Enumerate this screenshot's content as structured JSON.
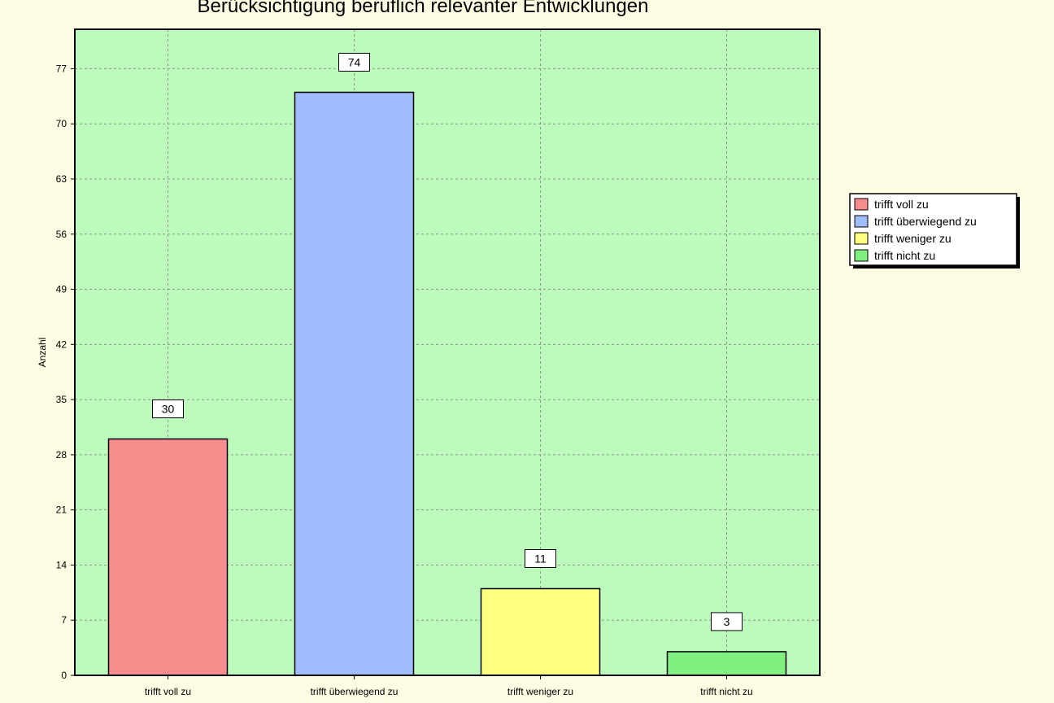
{
  "chart_data": {
    "type": "bar",
    "title": "Berücksichtigung beruflich relevanter Entwicklungen",
    "xlabel": "",
    "ylabel": "Anzahl",
    "categories": [
      "trifft voll zu",
      "trifft überwiegend zu",
      "trifft weniger zu",
      "trifft nicht zu"
    ],
    "values": [
      30,
      74,
      11,
      3
    ],
    "colors": [
      "#f78c8c",
      "#a0bcff",
      "#ffff80",
      "#80f080"
    ],
    "ylim": [
      0,
      82
    ],
    "yticks": [
      0,
      7,
      14,
      21,
      28,
      35,
      42,
      49,
      56,
      63,
      70,
      77
    ],
    "grid": true,
    "legend": {
      "position": "right",
      "entries": [
        "trifft voll zu",
        "trifft überwiegend zu",
        "trifft weniger zu",
        "trifft nicht zu"
      ]
    }
  },
  "style": {
    "plot_background": "#bdfbbd",
    "page_background": "#fdfde3",
    "grid_color": "#8a9a8a"
  }
}
